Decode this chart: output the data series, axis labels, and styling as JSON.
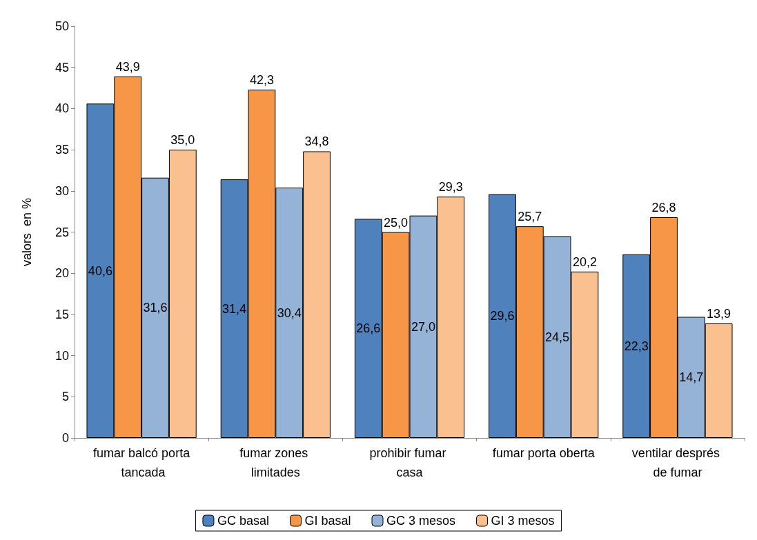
{
  "chart_data": {
    "type": "bar",
    "ylabel": "valors  en %",
    "categories": [
      "fumar balcó porta tancada",
      "fumar zones limitades",
      "prohibir fumar casa",
      "fumar porta oberta",
      "ventilar després de fumar"
    ],
    "series": [
      {
        "name": "GC basal",
        "color": "#4f81bd",
        "values": [
          40.6,
          31.4,
          26.6,
          29.6,
          22.3
        ],
        "value_labels": [
          "40,6",
          "31,4",
          "26,6",
          "29,6",
          "22,3"
        ]
      },
      {
        "name": "GI basal",
        "color": "#f79646",
        "values": [
          43.9,
          42.3,
          25.0,
          25.7,
          26.8
        ],
        "value_labels": [
          "43,9",
          "42,3",
          "25,0",
          "25,7",
          "26,8"
        ]
      },
      {
        "name": "GC 3 mesos",
        "color": "#95b3d7",
        "values": [
          31.6,
          30.4,
          27.0,
          24.5,
          14.7
        ],
        "value_labels": [
          "31,6",
          "30,4",
          "27,0",
          "24,5",
          "14,7"
        ]
      },
      {
        "name": "GI 3 mesos",
        "color": "#fac090",
        "values": [
          35.0,
          34.8,
          29.3,
          20.2,
          13.9
        ],
        "value_labels": [
          "35,0",
          "34,8",
          "29,3",
          "20,2",
          "13,9"
        ]
      }
    ],
    "ylim": [
      0,
      50
    ],
    "yticks": [
      0,
      5,
      10,
      15,
      20,
      25,
      30,
      35,
      40,
      45,
      50
    ],
    "grid": false,
    "legend": "bottom"
  }
}
